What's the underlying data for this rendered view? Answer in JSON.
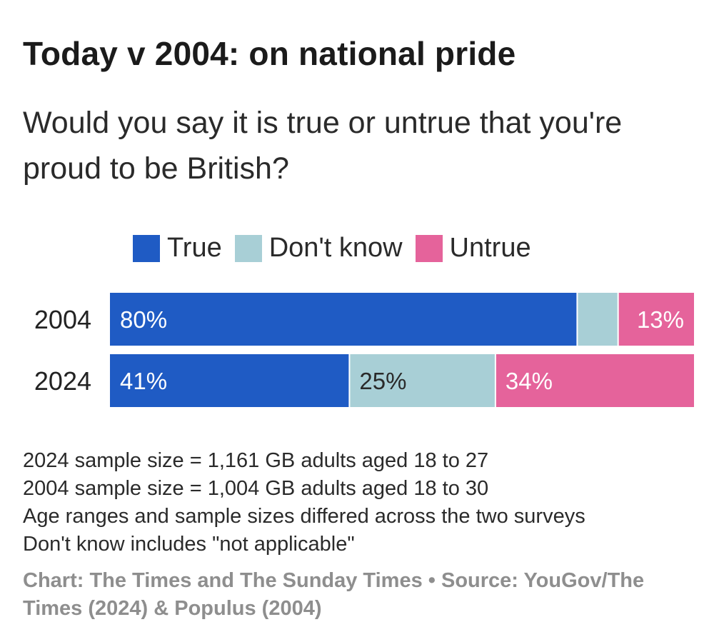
{
  "chart_data": {
    "type": "bar",
    "orientation": "horizontal",
    "stacked": true,
    "title": "Today v 2004: on national pride",
    "subtitle": "Would you say it is true or untrue that you're proud to be British?",
    "categories": [
      "2004",
      "2024"
    ],
    "series": [
      {
        "name": "True",
        "color": "#1f5bc4",
        "values": [
          80,
          41
        ],
        "labels": [
          "80%",
          "41%"
        ]
      },
      {
        "name": "Don't know",
        "color": "#a8cfd6",
        "values": [
          7,
          25
        ],
        "labels": [
          "",
          "25%"
        ]
      },
      {
        "name": "Untrue",
        "color": "#e5639b",
        "values": [
          13,
          34
        ],
        "labels": [
          "13%",
          "34%"
        ]
      }
    ],
    "xlim": [
      0,
      100
    ],
    "legend_position": "top"
  },
  "notes": [
    "2024 sample size = 1,161 GB adults aged 18 to 27",
    "2004 sample size = 1,004 GB adults aged 18 to 30",
    "Age ranges and sample sizes differed across the two surveys",
    "Don't know includes \"not applicable\""
  ],
  "credit": "Chart: The Times and The Sunday Times • Source: YouGov/The Times (2024) & Populus (2004)"
}
